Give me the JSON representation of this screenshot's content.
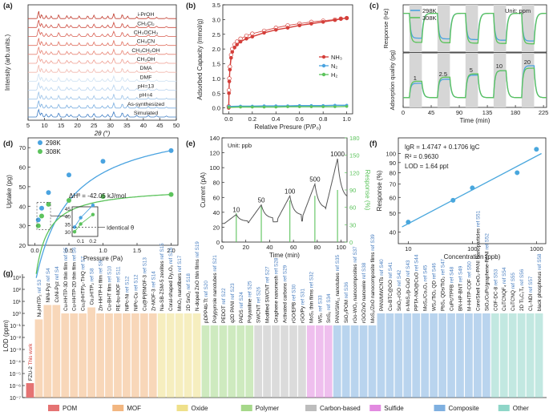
{
  "panel_labels": [
    "(a)",
    "(b)",
    "(c)",
    "(d)",
    "(e)",
    "(f)",
    "(g)"
  ],
  "colors": {
    "red": "#d43f3a",
    "blue": "#4aa3e0",
    "green": "#5cc35c",
    "axis": "#222222",
    "fit": "#49a7dd",
    "POM": "#e57373",
    "MOF": "#f2b680",
    "Oxide": "#efe08a",
    "Polymer": "#a6d88a",
    "Carbon-based": "#bdbdbd",
    "Sulfide": "#e28ae0",
    "Composite": "#7fb0e0",
    "Other": "#8fd6c8"
  },
  "chart_data": [
    {
      "id": "a",
      "type": "line",
      "title": "",
      "xlabel": "2θ (°)",
      "ylabel": "Intensity (arb.units.)",
      "xlim": [
        5,
        50
      ],
      "xticks": [
        5,
        10,
        15,
        20,
        25,
        30,
        35,
        40,
        45,
        50
      ],
      "series": [
        {
          "name": "i-PrOH",
          "color": "#c0392b"
        },
        {
          "name": "CH₂Cl₂",
          "color": "#cd4b3f"
        },
        {
          "name": "CH₃OCH₃",
          "color": "#d85d50"
        },
        {
          "name": "CH₃CN",
          "color": "#e07060"
        },
        {
          "name": "CH₃CH₂OH",
          "color": "#e88576"
        },
        {
          "name": "CH₃OH",
          "color": "#ef9d90"
        },
        {
          "name": "DMA",
          "color": "#f2b8ae"
        },
        {
          "name": "DMF",
          "color": "#cfe2f3"
        },
        {
          "name": "pH=13",
          "color": "#b8d4ef"
        },
        {
          "name": "pH=4",
          "color": "#9dc3e8"
        },
        {
          "name": "As-synthesized",
          "color": "#7aaee0"
        },
        {
          "name": "Simulated",
          "color": "#3d7cc4"
        }
      ]
    },
    {
      "id": "b",
      "type": "scatter",
      "xlabel": "Relative Presure (P/P₀)",
      "ylabel": "Adsorbed Capacity (mmol/g)",
      "xlim": [
        -0.05,
        1.05
      ],
      "ylim": [
        -0.2,
        3.5
      ],
      "xticks": [
        0.0,
        0.2,
        0.4,
        0.6,
        0.8,
        1.0
      ],
      "yticks": [
        0.0,
        0.5,
        1.0,
        1.5,
        2.0,
        2.5,
        3.0,
        3.5
      ],
      "legend": [
        "NH₃",
        "N₂",
        "H₂"
      ],
      "series": [
        {
          "name": "NH₃",
          "color": "#d43f3a",
          "x": [
            0.0,
            0.002,
            0.005,
            0.01,
            0.02,
            0.03,
            0.05,
            0.07,
            0.1,
            0.15,
            0.2,
            0.3,
            0.4,
            0.5,
            0.6,
            0.7,
            0.8,
            0.9,
            0.95,
            1.0
          ],
          "y": [
            0.0,
            0.5,
            0.9,
            1.3,
            1.7,
            1.9,
            2.05,
            2.15,
            2.25,
            2.35,
            2.42,
            2.55,
            2.65,
            2.72,
            2.8,
            2.86,
            2.92,
            2.98,
            3.02,
            3.05
          ],
          "desorb_y": [
            0.05,
            0.6,
            1.0,
            1.4,
            1.8,
            2.0,
            2.15,
            2.25,
            2.35,
            2.45,
            2.52,
            2.62,
            2.72,
            2.8,
            2.86,
            2.92,
            2.96,
            3.0,
            3.03,
            3.05
          ]
        },
        {
          "name": "N₂",
          "color": "#4aa3e0",
          "x": [
            0.0,
            0.1,
            0.2,
            0.3,
            0.4,
            0.5,
            0.6,
            0.7,
            0.8,
            0.9,
            1.0
          ],
          "y": [
            0.05,
            0.06,
            0.06,
            0.07,
            0.07,
            0.07,
            0.08,
            0.08,
            0.08,
            0.09,
            0.09
          ]
        },
        {
          "name": "H₂",
          "color": "#5cc35c",
          "x": [
            0.0,
            0.1,
            0.2,
            0.3,
            0.4,
            0.5,
            0.6,
            0.7,
            0.8,
            0.9,
            1.0
          ],
          "y": [
            0.02,
            0.03,
            0.03,
            0.03,
            0.03,
            0.04,
            0.04,
            0.04,
            0.04,
            0.04,
            0.05
          ]
        }
      ]
    },
    {
      "id": "c",
      "type": "line",
      "xlabel": "Time (min)",
      "ylabel_top": "Response (Hz)",
      "ylabel_bottom": "Adsorption quality (pg)",
      "unit_label": "Unit: ppm",
      "legend": [
        "298K",
        "308K"
      ],
      "xlim": [
        0,
        230
      ],
      "xticks": [
        0,
        45,
        90,
        135,
        180,
        225
      ],
      "concentrations": [
        "1",
        "2.5",
        "5",
        "10",
        "20"
      ],
      "cycle_starts": [
        10,
        55,
        100,
        145,
        190
      ],
      "cycle_ends": [
        30,
        75,
        120,
        165,
        210
      ],
      "top_levels_298K": [
        0.7,
        0.72,
        0.74,
        0.76,
        0.78
      ],
      "top_levels_308K": [
        0.82,
        0.83,
        0.84,
        0.85,
        0.86
      ],
      "bottom_levels_298K": [
        0.35,
        0.45,
        0.55,
        0.66,
        0.78
      ],
      "bottom_levels_308K": [
        0.4,
        0.5,
        0.58,
        0.66,
        0.72
      ]
    },
    {
      "id": "d",
      "type": "scatter",
      "xlabel": "Pressure (Pa)",
      "ylabel": "Uptake (pg)",
      "xlim": [
        -0.1,
        2.1
      ],
      "ylim": [
        20,
        75
      ],
      "xticks": [
        0.0,
        0.5,
        1.0,
        1.5,
        2.0
      ],
      "yticks": [
        20,
        30,
        40,
        50,
        60,
        70
      ],
      "legend": [
        "298K",
        "308K"
      ],
      "annotation": "ΔHᶿ = -42.05 kJ/mol",
      "inset_label": "Identical θ",
      "inset_yticks": [
        30,
        35,
        40,
        45
      ],
      "inset_xticks": [
        0.1,
        0.2
      ],
      "series": [
        {
          "name": "298K",
          "color": "#4aa3e0",
          "x": [
            0.05,
            0.1,
            0.2,
            0.5,
            1.0,
            2.0
          ],
          "y": [
            33,
            39,
            47,
            56,
            63,
            68.5
          ]
        },
        {
          "name": "308K",
          "color": "#5cc35c",
          "x": [
            0.05,
            0.1,
            0.2,
            0.5,
            1.0,
            2.0
          ],
          "y": [
            30,
            35,
            41,
            43,
            45,
            46
          ]
        }
      ]
    },
    {
      "id": "e",
      "type": "line",
      "xlabel": "Time (min)",
      "ylabel": "Current (pA)",
      "ylabel_right": "Response (%)",
      "unit_label": "Unit: ppb",
      "xlim": [
        0,
        105
      ],
      "ylim": [
        0,
        140
      ],
      "ylim_right": [
        0,
        180
      ],
      "xticks": [
        0,
        20,
        40,
        60,
        80,
        100
      ],
      "yticks": [
        0,
        20,
        40,
        60,
        80,
        100,
        120,
        140
      ],
      "yticks_right": [
        0,
        30,
        60,
        90,
        120,
        150,
        180
      ],
      "peak_labels": [
        "10",
        "50",
        "100",
        "500",
        "1000"
      ],
      "peak_times": [
        12,
        33,
        57,
        78,
        97
      ],
      "peak_currents": [
        37,
        50,
        62,
        78,
        112
      ],
      "response_bars": [
        50,
        62,
        72,
        80,
        90
      ]
    },
    {
      "id": "f",
      "type": "scatter",
      "xlabel": "Concentration (ppb)",
      "ylabel": "Response (%)",
      "xscale": "log",
      "yscale": "log",
      "xlim": [
        7,
        1400
      ],
      "ylim": [
        35,
        120
      ],
      "xticks": [
        10,
        100,
        1000
      ],
      "yticks": [
        40,
        50,
        60,
        70,
        80,
        90,
        100
      ],
      "equation": "lgR = 1.4747 + 0.1706 lgC",
      "r2": "R² = 0.9630",
      "lod": "LOD = 1.64 ppt",
      "x": [
        10,
        50,
        100,
        500,
        1000
      ],
      "y": [
        45,
        58,
        67,
        80,
        105
      ]
    },
    {
      "id": "g",
      "type": "bar",
      "ylabel": "LOD (ppm)",
      "yscale": "log",
      "yticks": [
        "10³",
        "10²",
        "10¹",
        "10⁰",
        "10⁻¹",
        "10⁻²",
        "10⁻³",
        "10⁻⁴",
        "10⁻⁵",
        "10⁻⁶",
        "10⁻⁷"
      ],
      "legend": [
        "POM",
        "MOF",
        "Oxide",
        "Polymer",
        "Carbon-based",
        "Sulfide",
        "Composite",
        "Other"
      ],
      "highlight": {
        "name": "FZU-2",
        "ref": "This work"
      },
      "bars": [
        {
          "name": "FZU-2",
          "ref": "This work",
          "cat": "POM",
          "exp": -5.8
        },
        {
          "name": "Ni₃HHTP₂",
          "ref": "ref S3",
          "cat": "MOF",
          "exp": -0.5
        },
        {
          "name": "NiNi-Pyz",
          "ref": "ref S4",
          "cat": "MOF",
          "exp": 0.7
        },
        {
          "name": "CoNi-Pyz",
          "ref": "ref S4",
          "cat": "MOF",
          "exp": 0.7
        },
        {
          "name": "Cu-HHTP-3D thin film",
          "ref": "ref S5",
          "cat": "MOF",
          "exp": 0
        },
        {
          "name": "Cu-HHTP-2D thin film",
          "ref": "ref S6",
          "cat": "MOF",
          "exp": 0
        },
        {
          "name": "Cu₃(HHTP)₂-THQ",
          "ref": "ref S7",
          "cat": "MOF",
          "exp": 0
        },
        {
          "name": "Cu₃HITP₂",
          "ref": "ref S8",
          "cat": "MOF",
          "exp": 0.5
        },
        {
          "name": "Zn-HHTP-H film",
          "ref": "ref S9",
          "cat": "MOF",
          "exp": 0
        },
        {
          "name": "Cu-BHT film",
          "ref": "ref S10",
          "cat": "MOF",
          "exp": 0
        },
        {
          "name": "RE-bu-MOF",
          "ref": "ref S11",
          "cat": "MOF",
          "exp": 0
        },
        {
          "name": "NiPc-Ni",
          "ref": "ref S12",
          "cat": "MOF",
          "exp": 0
        },
        {
          "name": "NiPc-Cu",
          "ref": "ref S12",
          "cat": "MOF",
          "exp": 0
        },
        {
          "name": "Cu@P(RMOF-3",
          "ref": "ref S13",
          "cat": "MOF",
          "exp": 0
        },
        {
          "name": "Zr-MOF-3",
          "ref": "ref S14",
          "cat": "MOF",
          "exp": 0
        },
        {
          "name": "Na-SB-ZSM-5 zeolites",
          "ref": "ref S15",
          "cat": "Oxide",
          "exp": 0
        },
        {
          "name": "Coral-shaped Dy₂O₃",
          "ref": "ref S16",
          "cat": "Oxide",
          "exp": 0
        },
        {
          "name": "MnO₂ nanofibers",
          "ref": "ref S17",
          "cat": "Oxide",
          "exp": 0
        },
        {
          "name": "2D SnO₂",
          "ref": "ref S18",
          "cat": "Oxide",
          "exp": 0
        },
        {
          "name": "N-doped ZnO thin films",
          "ref": "ref S19",
          "cat": "Oxide",
          "exp": 0
        },
        {
          "name": "pDPP4ti-Tt",
          "ref": "ref S20",
          "cat": "Polymer",
          "exp": -1
        },
        {
          "name": "Polypyrrole nanotubes",
          "ref": "ref S21",
          "cat": "Polymer",
          "exp": -1
        },
        {
          "name": "PEDOT",
          "ref": "ref S22",
          "cat": "Polymer",
          "exp": -1
        },
        {
          "name": "q2D PANI",
          "ref": "ref S23",
          "cat": "Polymer",
          "exp": -1
        },
        {
          "name": "PADS",
          "ref": "ref S24",
          "cat": "Polymer",
          "exp": -1
        },
        {
          "name": "Polyaniline",
          "ref": "ref S25",
          "cat": "Polymer",
          "exp": -1
        },
        {
          "name": "SWCNT",
          "ref": "ref S26",
          "cat": "Carbon-based",
          "exp": -1
        },
        {
          "name": "Modified SWCNT",
          "ref": "ref S27",
          "cat": "Carbon-based",
          "exp": -1
        },
        {
          "name": "Graphene nanomesh",
          "ref": "ref S28",
          "cat": "Carbon-based",
          "exp": -1
        },
        {
          "name": "Activated carbons",
          "ref": "ref S29",
          "cat": "Carbon-based",
          "exp": -1
        },
        {
          "name": "rGO/EPB",
          "ref": "ref S30",
          "cat": "Carbon-based",
          "exp": -1
        },
        {
          "name": "rGO/Py",
          "ref": "ref S31",
          "cat": "Carbon-based",
          "exp": -1
        },
        {
          "name": "MoS₂ thin films",
          "ref": "ref S32",
          "cat": "Sulfide",
          "exp": -1
        },
        {
          "name": "WS₂",
          "ref": "ref S33",
          "cat": "Sulfide",
          "exp": -1
        },
        {
          "name": "SnS₂",
          "ref": "ref S34",
          "cat": "Sulfide",
          "exp": -1
        },
        {
          "name": "PANI/SiW₁₁ nanotubes",
          "ref": "ref S35",
          "cat": "Composite",
          "exp": -1
        },
        {
          "name": "SiO₂/POM",
          "ref": "ref S36",
          "cat": "Composite",
          "exp": -1
        },
        {
          "name": "rGo-WO₃ nanocomposites",
          "ref": "ref S37",
          "cat": "Composite",
          "exp": -1
        },
        {
          "name": "rGO/ZnO nanowire",
          "ref": "ref S38",
          "cat": "Composite",
          "exp": -1
        },
        {
          "name": "MoS₂/ZnO nanocomposite films",
          "ref": "ref S39",
          "cat": "Composite",
          "exp": -1
        },
        {
          "name": "PANI/MWCNTs",
          "ref": "ref S40",
          "cat": "Composite",
          "exp": 0
        },
        {
          "name": "Cu-BTC@GO",
          "ref": "ref S41",
          "cat": "Composite",
          "exp": 0
        },
        {
          "name": "SnO₂-rGO",
          "ref": "ref S42",
          "cat": "Composite",
          "exp": 0
        },
        {
          "name": "n-MoS₂/p-CuO",
          "ref": "ref S43",
          "cat": "Composite",
          "exp": 0
        },
        {
          "name": "PPTA-NiO@CuO",
          "ref": "ref S44",
          "cat": "Composite",
          "exp": 0
        },
        {
          "name": "MoS₂/Co₃O₄",
          "ref": "ref S45",
          "cat": "Composite",
          "exp": 0
        },
        {
          "name": "WS₂/TiO₂ QD",
          "ref": "ref S46",
          "cat": "Composite",
          "exp": 0
        },
        {
          "name": "PbS₄ QDs/TiO₂",
          "ref": "ref S47",
          "cat": "Composite",
          "exp": 0
        },
        {
          "name": "CuPc/TPFB",
          "ref": "ref S48",
          "cat": "Composite",
          "exp": 0
        },
        {
          "name": "BN-HP-BNT",
          "ref": "ref S49",
          "cat": "Composite",
          "exp": 0
        },
        {
          "name": "M-HHTP-COF",
          "ref": "ref S50",
          "cat": "Composite",
          "exp": 0
        },
        {
          "name": "Core/Shell CeO₂-PANI Nanoparticles",
          "ref": "ref S51",
          "cat": "Composite",
          "exp": 0
        },
        {
          "name": "SiO₂/CuPc/graphene-PANI",
          "ref": "ref S52",
          "cat": "Composite",
          "exp": 0
        },
        {
          "name": "COF-DC-8",
          "ref": "ref S53",
          "cat": "Other",
          "exp": 0
        },
        {
          "name": "CuTCNQF₄",
          "ref": "ref S54",
          "cat": "Other",
          "exp": 0
        },
        {
          "name": "CuTCNQ",
          "ref": "ref S55",
          "cat": "Other",
          "exp": 0
        },
        {
          "name": "2D Ti₃C₂Tₓ",
          "ref": "ref S56",
          "cat": "Other",
          "exp": 0
        },
        {
          "name": "Cl₂-NDI",
          "ref": "ref S57",
          "cat": "Other",
          "exp": 0
        },
        {
          "name": "black phosphorus",
          "ref": "ref S58",
          "cat": "Other",
          "exp": 0
        }
      ]
    }
  ]
}
